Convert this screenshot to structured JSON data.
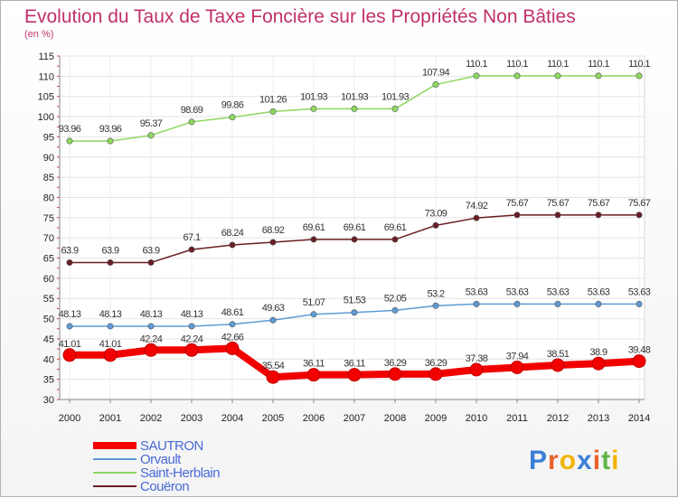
{
  "header": {
    "title": "Evolution du Taux de Taxe Foncière sur les Propriétés Non Bâties",
    "unit": "(en %)"
  },
  "logo": {
    "text": "Proxiti"
  },
  "colors": {
    "SAUTRON": "#f20000",
    "Orvault": "#5f9bd4",
    "Saint-Herblain": "#8ed860",
    "Couëron": "#6a1f23"
  },
  "chart_data": {
    "type": "line",
    "title": "Evolution du Taux de Taxe Foncière sur les Propriétés Non Bâties",
    "ylabel": "(en %)",
    "xlabel": "",
    "ylim": [
      30,
      115
    ],
    "yticks": [
      30,
      35,
      40,
      45,
      50,
      55,
      60,
      65,
      70,
      75,
      80,
      85,
      90,
      95,
      100,
      105,
      110,
      115
    ],
    "grid": true,
    "legend": "bottom-left",
    "x": [
      "2000",
      "2001",
      "2002",
      "2003",
      "2004",
      "2005",
      "2006",
      "2007",
      "2008",
      "2009",
      "2010",
      "2011",
      "2012",
      "2013",
      "2014"
    ],
    "series": [
      {
        "name": "Saint-Herblain",
        "values": [
          93.96,
          93.96,
          95.37,
          98.69,
          99.86,
          101.26,
          101.93,
          101.93,
          101.93,
          107.94,
          110.1,
          110.1,
          110.1,
          110.1,
          110.1
        ],
        "labels": [
          "93.96",
          "93.96",
          "95.37",
          "98.69",
          "99.86",
          "101.26",
          "101.93",
          "101.93",
          "101.93",
          "107.94",
          "110.1",
          "110.1",
          "110.1",
          "110.1",
          "110.1"
        ]
      },
      {
        "name": "Couëron",
        "values": [
          63.9,
          63.9,
          63.9,
          67.1,
          68.24,
          68.92,
          69.61,
          69.61,
          69.61,
          73.09,
          74.92,
          75.67,
          75.67,
          75.67,
          75.67
        ],
        "labels": [
          "63.9",
          "63.9",
          "63.9",
          "67.1",
          "68.24",
          "68.92",
          "69.61",
          "69.61",
          "69.61",
          "73.09",
          "74.92",
          "75.67",
          "75.67",
          "75.67",
          "75.67"
        ]
      },
      {
        "name": "Orvault",
        "values": [
          48.13,
          48.13,
          48.13,
          48.13,
          48.61,
          49.63,
          51.07,
          51.53,
          52.05,
          53.2,
          53.63,
          53.63,
          53.63,
          53.63,
          53.63
        ],
        "labels": [
          "48.13",
          "48.13",
          "48.13",
          "48.13",
          "48.61",
          "49.63",
          "51.07",
          "51.53",
          "52.05",
          "53.2",
          "53.63",
          "53.63",
          "53.63",
          "53.63",
          "53.63"
        ]
      },
      {
        "name": "SAUTRON",
        "values": [
          41.01,
          41.01,
          42.24,
          42.24,
          42.66,
          35.54,
          36.11,
          36.11,
          36.29,
          36.29,
          37.38,
          37.94,
          38.51,
          38.9,
          39.48
        ],
        "labels": [
          "41.01",
          "41.01",
          "42.24",
          "42.24",
          "42.66",
          "35.54",
          "36.11",
          "36.11",
          "36.29",
          "36.29",
          "37.38",
          "37.94",
          "38.51",
          "38.9",
          "39.48"
        ]
      }
    ],
    "legend_order": [
      "SAUTRON",
      "Orvault",
      "Saint-Herblain",
      "Couëron"
    ]
  }
}
